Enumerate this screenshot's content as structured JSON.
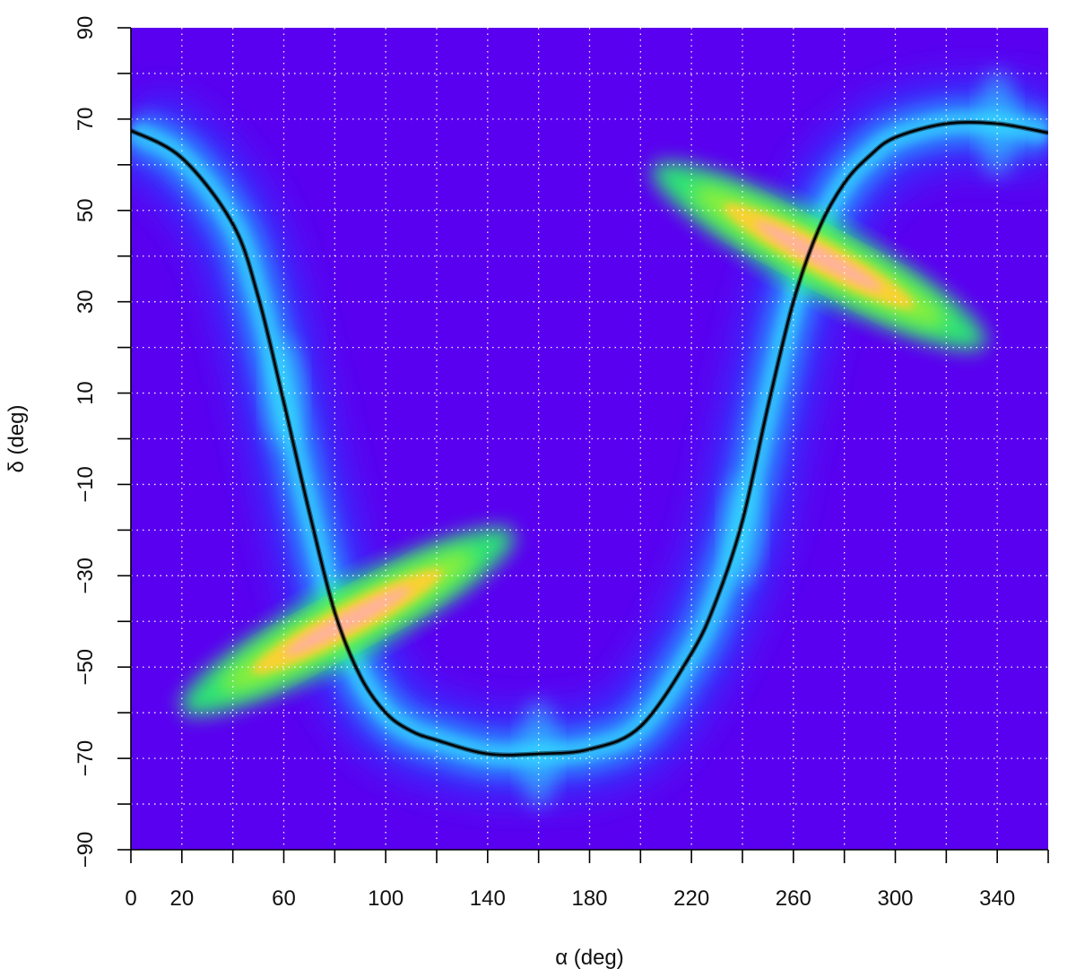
{
  "chart_data": {
    "type": "heatmap",
    "title": "",
    "xlabel": "α (deg)",
    "ylabel": "δ (deg)",
    "xlim": [
      0,
      360
    ],
    "ylim": [
      -90,
      90
    ],
    "x_ticks": [
      0,
      20,
      40,
      60,
      80,
      100,
      120,
      140,
      160,
      180,
      200,
      220,
      240,
      260,
      280,
      300,
      320,
      340,
      360
    ],
    "x_tick_labels": [
      "0",
      "20",
      "60",
      "100",
      "140",
      "180",
      "220",
      "260",
      "300",
      "340"
    ],
    "y_ticks": [
      -90,
      -80,
      -70,
      -60,
      -50,
      -40,
      -30,
      -20,
      -10,
      0,
      10,
      20,
      30,
      40,
      50,
      60,
      70,
      80,
      90
    ],
    "y_tick_labels": [
      "−90",
      "−70",
      "−50",
      "−30",
      "−10",
      "10",
      "30",
      "50",
      "70",
      "90"
    ],
    "grid": true,
    "background_color": "#5a00f0",
    "colormap": [
      "#5a00f0",
      "#2f3cff",
      "#2f9cff",
      "#34dcff",
      "#2cf070",
      "#9cf030",
      "#ffd030",
      "#ffb0a0"
    ],
    "series": [
      {
        "type": "line",
        "color": "#000000",
        "x": [
          0,
          20,
          40,
          50,
          60,
          70,
          80,
          90,
          100,
          110,
          120,
          140,
          160,
          180,
          200,
          220,
          230,
          240,
          250,
          260,
          270,
          280,
          290,
          300,
          320,
          340,
          360
        ],
        "y": [
          67.5,
          61.5,
          47,
          31,
          8,
          -16,
          -38,
          -52,
          -60,
          -64,
          -66,
          -69,
          -69,
          -68,
          -63,
          -47,
          -35,
          -18,
          7,
          30,
          46,
          56,
          62,
          66,
          69,
          69,
          67
        ]
      }
    ],
    "density_peaks": [
      {
        "x": 85,
        "y": -40,
        "intensity": 1.0
      },
      {
        "x": 270,
        "y": 40,
        "intensity": 1.0
      },
      {
        "x": 60,
        "y": 10,
        "intensity": 0.35
      },
      {
        "x": 240,
        "y": -20,
        "intensity": 0.35
      },
      {
        "x": 160,
        "y": -69,
        "intensity": 0.3
      },
      {
        "x": 340,
        "y": 69,
        "intensity": 0.3
      }
    ]
  }
}
